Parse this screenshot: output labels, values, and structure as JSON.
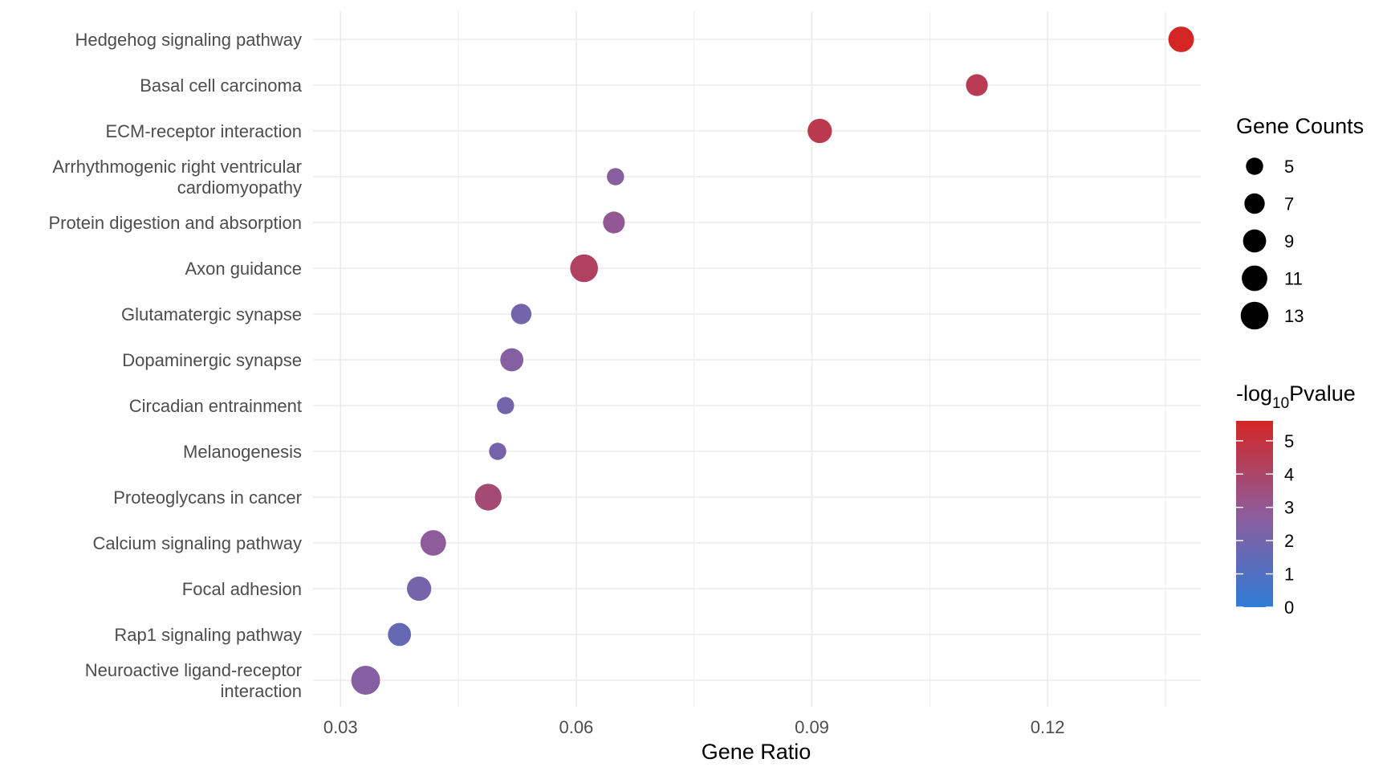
{
  "chart_data": {
    "type": "scatter",
    "title": "",
    "xlabel": "Gene Ratio",
    "ylabel": "",
    "xlim": [
      0.0265,
      0.1395
    ],
    "x_ticks": [
      0.03,
      0.06,
      0.09,
      0.12
    ],
    "x_tick_labels": [
      "0.03",
      "0.06",
      "0.09",
      "0.12"
    ],
    "grid": true,
    "points": [
      {
        "term": "Hedgehog signaling pathway",
        "gene_ratio": 0.137,
        "count": 11,
        "neg_log10_p": 5.6
      },
      {
        "term": "Basal cell carcinoma",
        "gene_ratio": 0.111,
        "count": 8,
        "neg_log10_p": 4.5
      },
      {
        "term": "ECM-receptor interaction",
        "gene_ratio": 0.091,
        "count": 10,
        "neg_log10_p": 4.6
      },
      {
        "term": "Arrhythmogenic right ventricular cardiomyopathy",
        "gene_ratio": 0.065,
        "count": 5,
        "neg_log10_p": 2.6
      },
      {
        "term": "Protein digestion and absorption",
        "gene_ratio": 0.0648,
        "count": 8,
        "neg_log10_p": 3.0
      },
      {
        "term": "Axon guidance",
        "gene_ratio": 0.061,
        "count": 13,
        "neg_log10_p": 4.2
      },
      {
        "term": "Glutamatergic synapse",
        "gene_ratio": 0.053,
        "count": 7,
        "neg_log10_p": 2.0
      },
      {
        "term": "Dopaminergic synapse",
        "gene_ratio": 0.0518,
        "count": 9,
        "neg_log10_p": 2.5
      },
      {
        "term": "Circadian entrainment",
        "gene_ratio": 0.051,
        "count": 5,
        "neg_log10_p": 2.0
      },
      {
        "term": "Melanogenesis",
        "gene_ratio": 0.05,
        "count": 5,
        "neg_log10_p": 2.1
      },
      {
        "term": "Proteoglycans in cancer",
        "gene_ratio": 0.0488,
        "count": 12,
        "neg_log10_p": 3.7
      },
      {
        "term": "Calcium signaling pathway",
        "gene_ratio": 0.0418,
        "count": 11,
        "neg_log10_p": 2.8
      },
      {
        "term": "Focal adhesion",
        "gene_ratio": 0.04,
        "count": 10,
        "neg_log10_p": 2.1
      },
      {
        "term": "Rap1 signaling pathway",
        "gene_ratio": 0.0375,
        "count": 9,
        "neg_log10_p": 1.6
      },
      {
        "term": "Neuroactive ligand-receptor interaction",
        "gene_ratio": 0.0332,
        "count": 14,
        "neg_log10_p": 2.5
      }
    ],
    "size_legend": {
      "title": "Gene Counts",
      "breaks": [
        5,
        7,
        9,
        11,
        13
      ],
      "labels": [
        "5",
        "7",
        "9",
        "11",
        "13"
      ]
    },
    "color_legend": {
      "title_prefix": "-log",
      "title_subscript": "10",
      "title_suffix": "Pvalue",
      "breaks": [
        5,
        4,
        3,
        2,
        1,
        0
      ],
      "labels": [
        "5",
        "4",
        "3",
        "2",
        "1",
        "0"
      ],
      "range": [
        0,
        5.6
      ],
      "low_color": "#2F7BD6",
      "mid_color": "#8E5C9B",
      "high_color": "#D32625"
    }
  }
}
